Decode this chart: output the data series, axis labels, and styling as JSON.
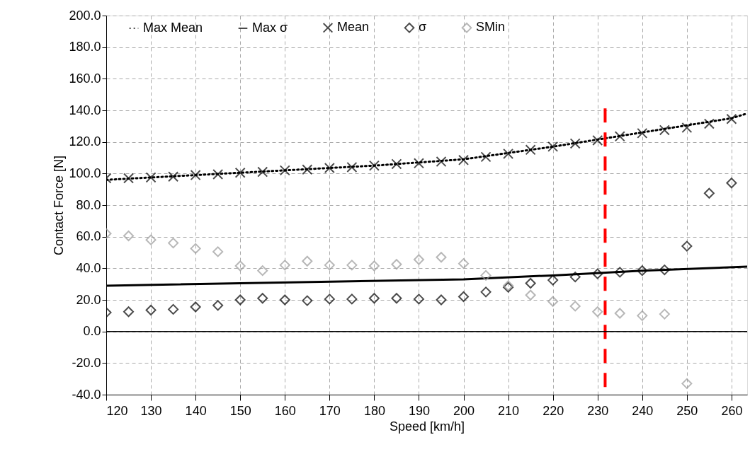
{
  "chart_data": {
    "type": "scatter",
    "xlabel": "Speed [km/h]",
    "ylabel": "Contact Force [N]",
    "xlim": [
      120,
      263.5
    ],
    "xticks": [
      120,
      130,
      140,
      150,
      160,
      170,
      180,
      190,
      200,
      210,
      220,
      230,
      240,
      250,
      260
    ],
    "ylim": [
      -40,
      200
    ],
    "yticks": [
      {
        "value": -40,
        "label": "-40.0"
      },
      {
        "value": -20,
        "label": "-20.0"
      },
      {
        "value": 0,
        "label": "0.0"
      },
      {
        "value": 20,
        "label": "20.0"
      },
      {
        "value": 40,
        "label": "40.0"
      },
      {
        "value": 60,
        "label": "60.0"
      },
      {
        "value": 80,
        "label": "80.0"
      },
      {
        "value": 100,
        "label": "100.0"
      },
      {
        "value": 120,
        "label": "120.0"
      },
      {
        "value": 140,
        "label": "140.0"
      },
      {
        "value": 160,
        "label": "160.0"
      },
      {
        "value": 180,
        "label": "180.0"
      },
      {
        "value": 200,
        "label": "200.0"
      }
    ],
    "grid": true,
    "legend": "top",
    "ref_lines": [
      {
        "axis": "x",
        "value": 231.7,
        "color": "#ff0000",
        "line_style": "dashed"
      },
      {
        "axis": "y",
        "value": 0,
        "color": "#000000",
        "line_style": "solid"
      }
    ],
    "series": [
      {
        "name": "Max Mean",
        "type": "line",
        "color": "#000000",
        "line_style": "dotted",
        "marker": "none",
        "x": [
          120,
          140,
          160,
          180,
          200,
          220,
          240,
          260,
          263.5
        ],
        "values": [
          96,
          99,
          102,
          105,
          109,
          117,
          126,
          135,
          138
        ]
      },
      {
        "name": "Max σ",
        "type": "line",
        "color": "#000000",
        "line_style": "solid",
        "marker": "none",
        "x": [
          120,
          200,
          220,
          240,
          263.5
        ],
        "values": [
          29,
          33,
          35.5,
          38.5,
          41
        ]
      },
      {
        "name": "Mean",
        "color": "#000000",
        "marker": "cross",
        "x": [
          120,
          125,
          130,
          135,
          140,
          145,
          150,
          155,
          160,
          165,
          170,
          175,
          180,
          185,
          190,
          195,
          200,
          205,
          210,
          215,
          220,
          225,
          230,
          235,
          240,
          245,
          250,
          255,
          260
        ],
        "values": [
          97,
          97,
          97.5,
          98,
          99,
          99.5,
          100.5,
          101,
          102,
          102.5,
          103.5,
          104,
          105,
          106,
          106.5,
          107.5,
          108.5,
          110.5,
          112.5,
          115,
          117,
          119,
          121,
          123.5,
          125.5,
          127.5,
          129,
          131.5,
          134.5
        ]
      },
      {
        "name": "σ",
        "color": "#000000",
        "marker": "diamond",
        "x": [
          120,
          125,
          130,
          135,
          140,
          145,
          150,
          155,
          160,
          165,
          170,
          175,
          180,
          185,
          190,
          195,
          200,
          205,
          210,
          215,
          220,
          225,
          230,
          235,
          240,
          245,
          250,
          255,
          260
        ],
        "values": [
          12,
          12.5,
          13.5,
          14,
          15.5,
          16.5,
          20,
          21,
          20,
          19.5,
          20.5,
          20.5,
          21,
          21,
          20.5,
          20,
          22,
          25,
          28,
          30.5,
          32.5,
          34.5,
          36.5,
          37.5,
          38.5,
          39,
          54,
          87.5,
          94
        ]
      },
      {
        "name": "SMin",
        "color": "#999999",
        "marker": "diamond",
        "x": [
          120,
          125,
          130,
          135,
          140,
          145,
          150,
          155,
          160,
          165,
          170,
          175,
          180,
          185,
          190,
          195,
          200,
          205,
          210,
          215,
          220,
          225,
          230,
          235,
          240,
          245,
          250
        ],
        "values": [
          62,
          60.5,
          58,
          56,
          52.5,
          50.5,
          41.5,
          38.5,
          42,
          44.5,
          42,
          42,
          41.5,
          42.5,
          45.5,
          47,
          43,
          35.5,
          29,
          23,
          19,
          16,
          12.5,
          11.5,
          10,
          11,
          -33
        ]
      }
    ]
  }
}
